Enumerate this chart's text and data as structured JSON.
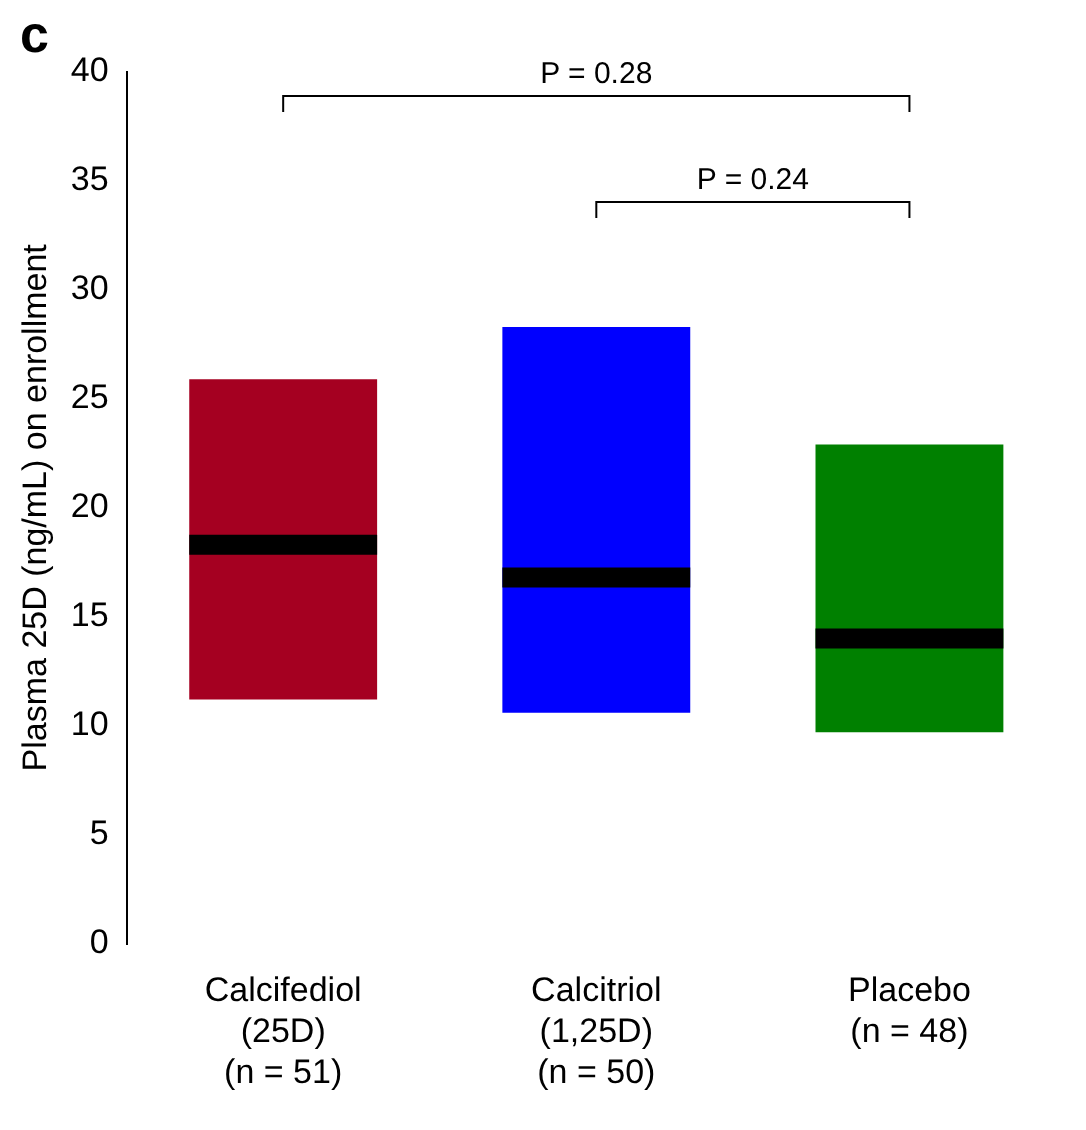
{
  "chart_data": {
    "type": "box",
    "title": "c",
    "ylabel": "Plasma 25D (ng/mL) on enrollment",
    "categories": [
      "Calcifediol\n(25D)\n(n = 51)",
      "Calcitriol\n(1,25D)\n(n = 50)",
      "Placebo\n(n = 48)"
    ],
    "boxes": [
      {
        "low": 11.2,
        "q1": 11.2,
        "median": 18.3,
        "q3": 25.9,
        "high": 25.9
      },
      {
        "low": 10.6,
        "q1": 10.6,
        "median": 16.8,
        "q3": 28.3,
        "high": 28.3
      },
      {
        "low": 9.7,
        "q1": 9.7,
        "median": 14.0,
        "q3": 22.9,
        "high": 22.9
      }
    ],
    "colors": [
      "#a50021",
      "#0000ff",
      "#008000"
    ],
    "ylim": [
      0,
      40
    ],
    "yticks": [
      0,
      5,
      10,
      15,
      20,
      25,
      30,
      35,
      40
    ],
    "grid": false,
    "legend": false,
    "annotations": [
      "P = 0.28",
      "P = 0.24"
    ]
  }
}
